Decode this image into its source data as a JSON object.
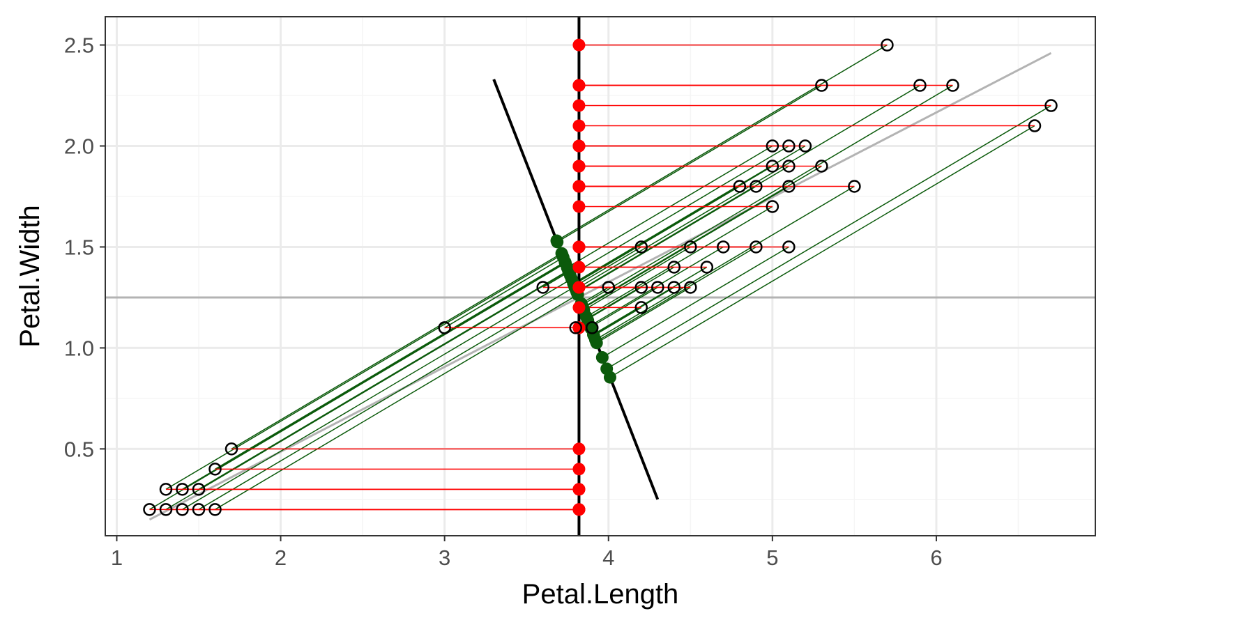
{
  "chart_data": {
    "type": "scatter",
    "title": "",
    "xlabel": "Petal.Length",
    "ylabel": "Petal.Width",
    "xlim": [
      0.93,
      6.97
    ],
    "ylim": [
      0.07,
      2.64
    ],
    "x_ticks": [
      1,
      2,
      3,
      4,
      5,
      6
    ],
    "y_ticks": [
      0.5,
      1.0,
      1.5,
      2.0,
      2.5
    ],
    "y_tick_labels": [
      "0.5",
      "1.0",
      "1.5",
      "2.0",
      "2.5"
    ],
    "grid": true,
    "mean_x": 3.82,
    "mean_y": 1.25,
    "principal_axis": {
      "from": [
        1.2,
        0.15
      ],
      "to": [
        6.7,
        2.46
      ]
    },
    "perpendicular_axis": {
      "from": [
        3.3,
        2.33
      ],
      "to": [
        4.3,
        0.25
      ]
    },
    "points": [
      {
        "x": 1.2,
        "y": 0.2
      },
      {
        "x": 1.3,
        "y": 0.2
      },
      {
        "x": 1.4,
        "y": 0.2
      },
      {
        "x": 1.5,
        "y": 0.2
      },
      {
        "x": 1.6,
        "y": 0.2
      },
      {
        "x": 1.3,
        "y": 0.3
      },
      {
        "x": 1.4,
        "y": 0.3
      },
      {
        "x": 1.5,
        "y": 0.3
      },
      {
        "x": 1.6,
        "y": 0.4
      },
      {
        "x": 1.7,
        "y": 0.5
      },
      {
        "x": 3.0,
        "y": 1.1
      },
      {
        "x": 3.8,
        "y": 1.1
      },
      {
        "x": 3.9,
        "y": 1.1
      },
      {
        "x": 4.2,
        "y": 1.2
      },
      {
        "x": 3.6,
        "y": 1.3
      },
      {
        "x": 4.0,
        "y": 1.3
      },
      {
        "x": 4.2,
        "y": 1.3
      },
      {
        "x": 4.3,
        "y": 1.3
      },
      {
        "x": 4.4,
        "y": 1.3
      },
      {
        "x": 4.5,
        "y": 1.3
      },
      {
        "x": 4.4,
        "y": 1.4
      },
      {
        "x": 4.6,
        "y": 1.4
      },
      {
        "x": 4.2,
        "y": 1.5
      },
      {
        "x": 4.5,
        "y": 1.5
      },
      {
        "x": 4.7,
        "y": 1.5
      },
      {
        "x": 4.9,
        "y": 1.5
      },
      {
        "x": 5.1,
        "y": 1.5
      },
      {
        "x": 5.0,
        "y": 1.7
      },
      {
        "x": 4.8,
        "y": 1.8
      },
      {
        "x": 4.9,
        "y": 1.8
      },
      {
        "x": 5.1,
        "y": 1.8
      },
      {
        "x": 5.5,
        "y": 1.8
      },
      {
        "x": 5.0,
        "y": 1.9
      },
      {
        "x": 5.1,
        "y": 1.9
      },
      {
        "x": 5.3,
        "y": 1.9
      },
      {
        "x": 5.0,
        "y": 2.0
      },
      {
        "x": 5.1,
        "y": 2.0
      },
      {
        "x": 5.2,
        "y": 2.0
      },
      {
        "x": 6.6,
        "y": 2.1
      },
      {
        "x": 6.7,
        "y": 2.2
      },
      {
        "x": 5.3,
        "y": 2.3
      },
      {
        "x": 5.9,
        "y": 2.3
      },
      {
        "x": 6.1,
        "y": 2.3
      },
      {
        "x": 5.7,
        "y": 2.5
      }
    ],
    "colors": {
      "points": "#000000",
      "horizontal_projection": "#ff0000",
      "perpendicular_projection": "#0b5a0b",
      "principal_axis": "#b3b3b3",
      "mean_lines": "#b3b3b3",
      "projection_axis": "#000000",
      "grid_major": "#ebebeb",
      "grid_minor": "#f5f5f5",
      "panel_border": "#333333"
    }
  }
}
